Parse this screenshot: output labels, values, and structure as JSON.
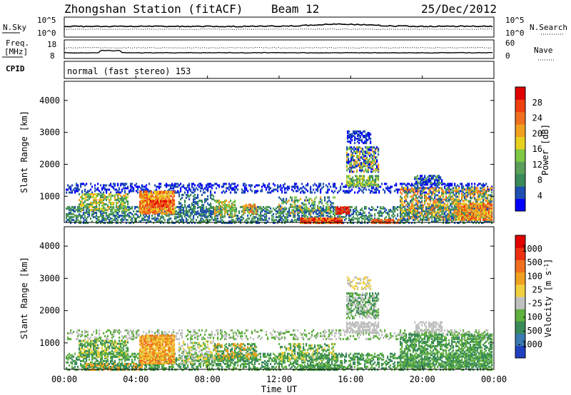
{
  "header": {
    "station": "Zhongshan Station (fitACF)",
    "beam": "Beam 12",
    "date": "25/Dec/2012"
  },
  "top_panel": {
    "nsky_label": "N.Sky",
    "nsky_ticks": [
      "10^5",
      "10^0"
    ],
    "nsearch_label": "N.Search",
    "nsearch_ticks": [
      "10^5",
      "10^0"
    ]
  },
  "freq_panel": {
    "freq_label_1": "Freq.",
    "freq_label_2": "[MHz]",
    "freq_ticks": [
      "18",
      "8"
    ],
    "nave_label": "Nave",
    "nave_ticks": [
      "60",
      "0"
    ]
  },
  "cpid_panel": {
    "label": "CPID",
    "text": "normal (fast stereo) 153"
  },
  "chart_data": [
    {
      "type": "heatmap",
      "name": "power",
      "ylabel": "Slant Range [km]",
      "yticks": [
        "4000",
        "3000",
        "2000",
        "1000"
      ],
      "colorbar_label": "Power [dB]",
      "colorbar_ticks": [
        "28",
        "24",
        "20",
        "16",
        "12",
        "8",
        "4"
      ],
      "colors": [
        "#0000ff",
        "#1f4fb0",
        "#3a8a5a",
        "#5aa05a",
        "#7ec845",
        "#e8d020",
        "#f0a020",
        "#f07020",
        "#ee4010",
        "#e00000"
      ]
    },
    {
      "type": "heatmap",
      "name": "velocity",
      "ylabel": "Slant Range [km]",
      "yticks": [
        "4000",
        "3000",
        "2000",
        "1000"
      ],
      "colorbar_label": "Velocity [m s^-1]",
      "colorbar_ticks": [
        "1000",
        "500",
        "100",
        "25",
        "-25",
        "-100",
        "-500",
        "-1000"
      ],
      "colors": [
        "#2040c0",
        "#3a7ab0",
        "#3a8a5a",
        "#60b040",
        "#c0c0c0",
        "#f0d040",
        "#f0a020",
        "#f07020",
        "#ee3010",
        "#e00000"
      ],
      "xticks": [
        "00:00",
        "04:00",
        "08:00",
        "12:00",
        "16:00",
        "20:00",
        "00:00"
      ],
      "xlabel": "Time UT"
    }
  ]
}
